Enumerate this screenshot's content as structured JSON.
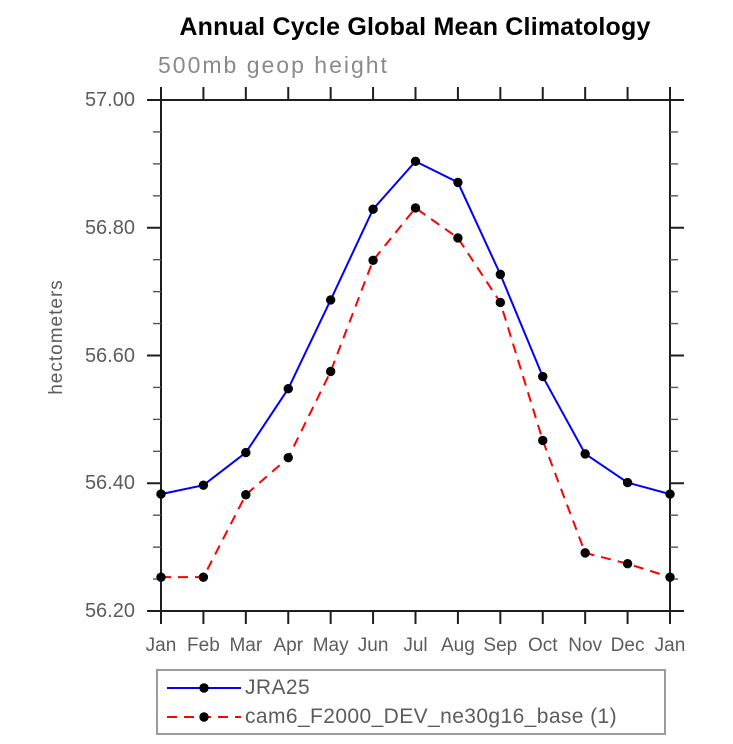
{
  "chart_data": {
    "type": "line",
    "title": "Annual Cycle Global Mean Climatology",
    "subtitle": "500mb geop height",
    "ylabel": "hectometers",
    "xlabel": "",
    "categories": [
      "Jan",
      "Feb",
      "Mar",
      "Apr",
      "May",
      "Jun",
      "Jul",
      "Aug",
      "Sep",
      "Oct",
      "Nov",
      "Dec",
      "Jan"
    ],
    "ylim": [
      56.2,
      57.0
    ],
    "ytick_values": [
      57.0,
      56.8,
      56.6,
      56.4,
      56.2
    ],
    "ytick_labels": [
      "57.00",
      "56.80",
      "56.60",
      "56.40",
      "56.20"
    ],
    "minor_tick_step": 0.05,
    "grid": false,
    "legend_position": "bottom-left-box",
    "axis_color": "#1e1e1e",
    "text_color": "#5c5c5c",
    "series": [
      {
        "name": "JRA25",
        "color": "#0000ff",
        "line_style": "solid",
        "marker": "filled-circle",
        "marker_color": "#000000",
        "values": [
          56.383,
          56.397,
          56.448,
          56.548,
          56.687,
          56.829,
          56.904,
          56.871,
          56.727,
          56.567,
          56.446,
          56.401,
          56.383
        ]
      },
      {
        "name": "cam6_F2000_DEV_ne30g16_base (1)",
        "color": "#ff0000",
        "line_style": "dashed",
        "marker": "filled-circle",
        "marker_color": "#000000",
        "values": [
          56.253,
          56.253,
          56.382,
          56.44,
          56.575,
          56.749,
          56.831,
          56.784,
          56.683,
          56.467,
          56.291,
          56.274,
          56.253
        ]
      }
    ]
  }
}
